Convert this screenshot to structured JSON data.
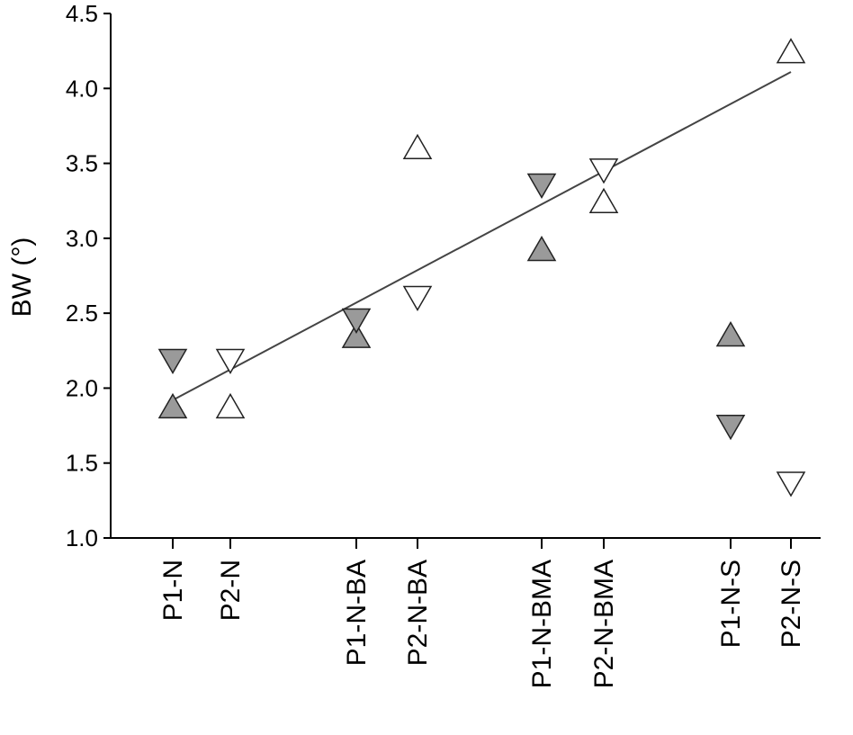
{
  "chart_data": {
    "type": "scatter",
    "title": "",
    "xlabel": "",
    "ylabel": "BW (°)",
    "ylim": [
      1.0,
      4.5
    ],
    "yticks": [
      "1.0",
      "1.5",
      "2.0",
      "2.5",
      "3.0",
      "3.5",
      "4.0",
      "4.5"
    ],
    "categories": [
      "P1-N",
      "P2-N",
      "P1-N-BA",
      "P2-N-BA",
      "P1-N-BMA",
      "P2-N-BMA",
      "P1-N-S",
      "P2-N-S"
    ],
    "grid": false,
    "legend": "none",
    "points": [
      {
        "category": "P1-N",
        "y": 1.88,
        "marker": "up",
        "fill": "#9a9a9a"
      },
      {
        "category": "P1-N",
        "y": 2.18,
        "marker": "down",
        "fill": "#9a9a9a"
      },
      {
        "category": "P2-N",
        "y": 1.88,
        "marker": "up",
        "fill": "#ffffff"
      },
      {
        "category": "P2-N",
        "y": 2.18,
        "marker": "down",
        "fill": "#ffffff"
      },
      {
        "category": "P1-N-BA",
        "y": 2.35,
        "marker": "up",
        "fill": "#9a9a9a"
      },
      {
        "category": "P1-N-BA",
        "y": 2.45,
        "marker": "down",
        "fill": "#9a9a9a"
      },
      {
        "category": "P2-N-BA",
        "y": 3.61,
        "marker": "up",
        "fill": "#ffffff"
      },
      {
        "category": "P2-N-BA",
        "y": 2.6,
        "marker": "down",
        "fill": "#ffffff"
      },
      {
        "category": "P1-N-BMA",
        "y": 2.93,
        "marker": "up",
        "fill": "#9a9a9a"
      },
      {
        "category": "P1-N-BMA",
        "y": 3.35,
        "marker": "down",
        "fill": "#9a9a9a"
      },
      {
        "category": "P2-N-BMA",
        "y": 3.25,
        "marker": "up",
        "fill": "#ffffff"
      },
      {
        "category": "P2-N-BMA",
        "y": 3.45,
        "marker": "down",
        "fill": "#ffffff"
      },
      {
        "category": "P1-N-S",
        "y": 2.36,
        "marker": "up",
        "fill": "#9a9a9a"
      },
      {
        "category": "P1-N-S",
        "y": 1.74,
        "marker": "down",
        "fill": "#9a9a9a"
      },
      {
        "category": "P2-N-S",
        "y": 4.25,
        "marker": "up",
        "fill": "#ffffff"
      },
      {
        "category": "P2-N-S",
        "y": 1.36,
        "marker": "down",
        "fill": "#ffffff"
      }
    ],
    "trendline": {
      "from": {
        "category": "P1-N",
        "y": 1.92
      },
      "to": {
        "category": "P2-N-S",
        "y": 4.11
      }
    },
    "colors": {
      "filled": "#9a9a9a",
      "open": "#ffffff",
      "stroke": "#222222",
      "line": "#444444"
    }
  }
}
